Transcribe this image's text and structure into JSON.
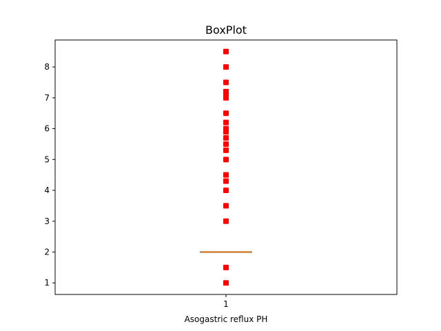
{
  "chart_data": {
    "type": "box",
    "title": "BoxPlot",
    "xlabel": "Asogastric reflux PH",
    "ylabel": "",
    "categories": [
      "1"
    ],
    "y_ticks": [
      1,
      2,
      3,
      4,
      5,
      6,
      7,
      8
    ],
    "ylim": [
      0.625,
      8.875
    ],
    "grid": false,
    "box": {
      "q1": 2.0,
      "median": 2.0,
      "q3": 2.0,
      "whisker_low": 2.0,
      "whisker_high": 2.0
    },
    "outliers": [
      1.0,
      1.5,
      3.0,
      3.5,
      4.0,
      4.3,
      4.5,
      5.0,
      5.3,
      5.5,
      5.7,
      5.9,
      6.0,
      6.2,
      6.5,
      7.0,
      7.1,
      7.2,
      7.5,
      8.0,
      8.5
    ],
    "colors": {
      "median": "#ff7f0e",
      "box": "#000000",
      "outlier": "#ff0000"
    }
  }
}
